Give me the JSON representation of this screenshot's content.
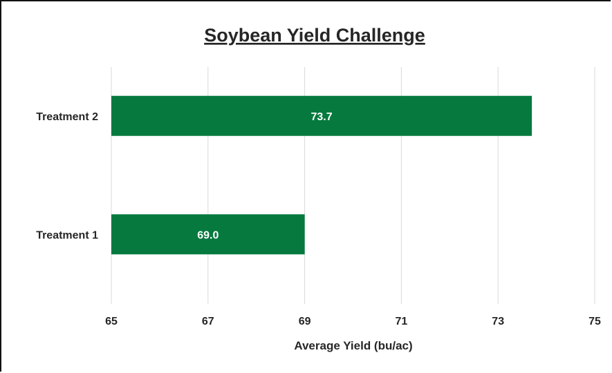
{
  "chart_data": {
    "type": "bar",
    "orientation": "horizontal",
    "title": "Soybean Yield Challenge",
    "categories": [
      "Treatment 2",
      "Treatment 1"
    ],
    "values": [
      73.7,
      69.0
    ],
    "data_labels": [
      "73.7",
      "69.0"
    ],
    "xlabel": "Average Yield (bu/ac)",
    "ylabel": "",
    "xlim": [
      65,
      75
    ],
    "xticks": [
      "65",
      "67",
      "69",
      "71",
      "73",
      "75"
    ],
    "grid": "vertical",
    "legend": "none",
    "bar_color": "#067a3e"
  }
}
